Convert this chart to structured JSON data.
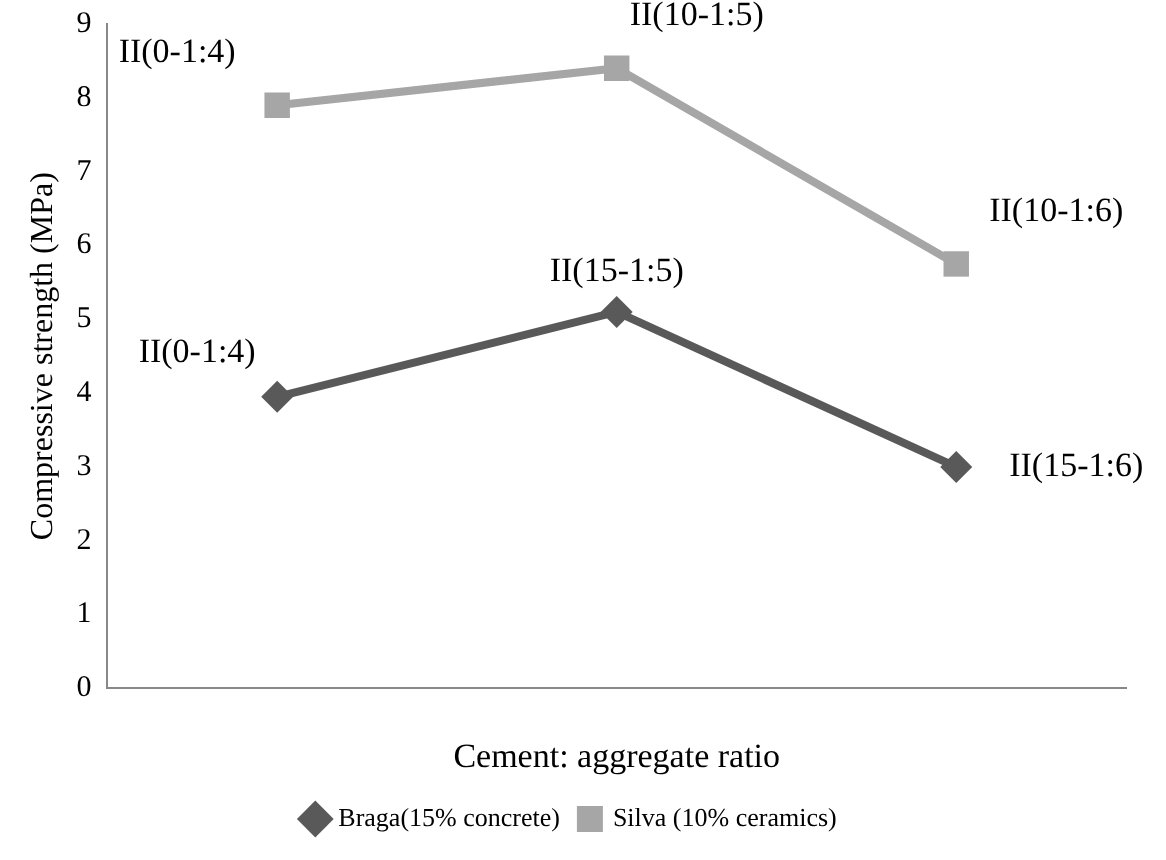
{
  "chart_data": {
    "type": "line",
    "xlabel": "Cement: aggregate ratio",
    "ylabel": "Compressive strength (MPa)",
    "categories": [
      null,
      null,
      null
    ],
    "ylim": [
      0,
      9
    ],
    "yticks": [
      0,
      1,
      2,
      3,
      4,
      5,
      6,
      7,
      8,
      9
    ],
    "grid": false,
    "legend": "bottom",
    "line_style": "solid",
    "series": [
      {
        "name": "Braga(15% concrete)",
        "color": "#595959",
        "marker": "diamond",
        "values": [
          3.95,
          5.1,
          3.0
        ],
        "value_labels": [
          "II(0-1:4)",
          "II(15-1:5)",
          "II(15-1:6)"
        ]
      },
      {
        "name": "Silva (10% ceramics)",
        "color": "#a6a6a6",
        "marker": "square",
        "values": [
          7.9,
          8.4,
          5.75
        ],
        "value_labels": [
          "II(0-1:4)",
          "II(10-1:5)",
          "II(10-1:6)"
        ]
      }
    ]
  }
}
